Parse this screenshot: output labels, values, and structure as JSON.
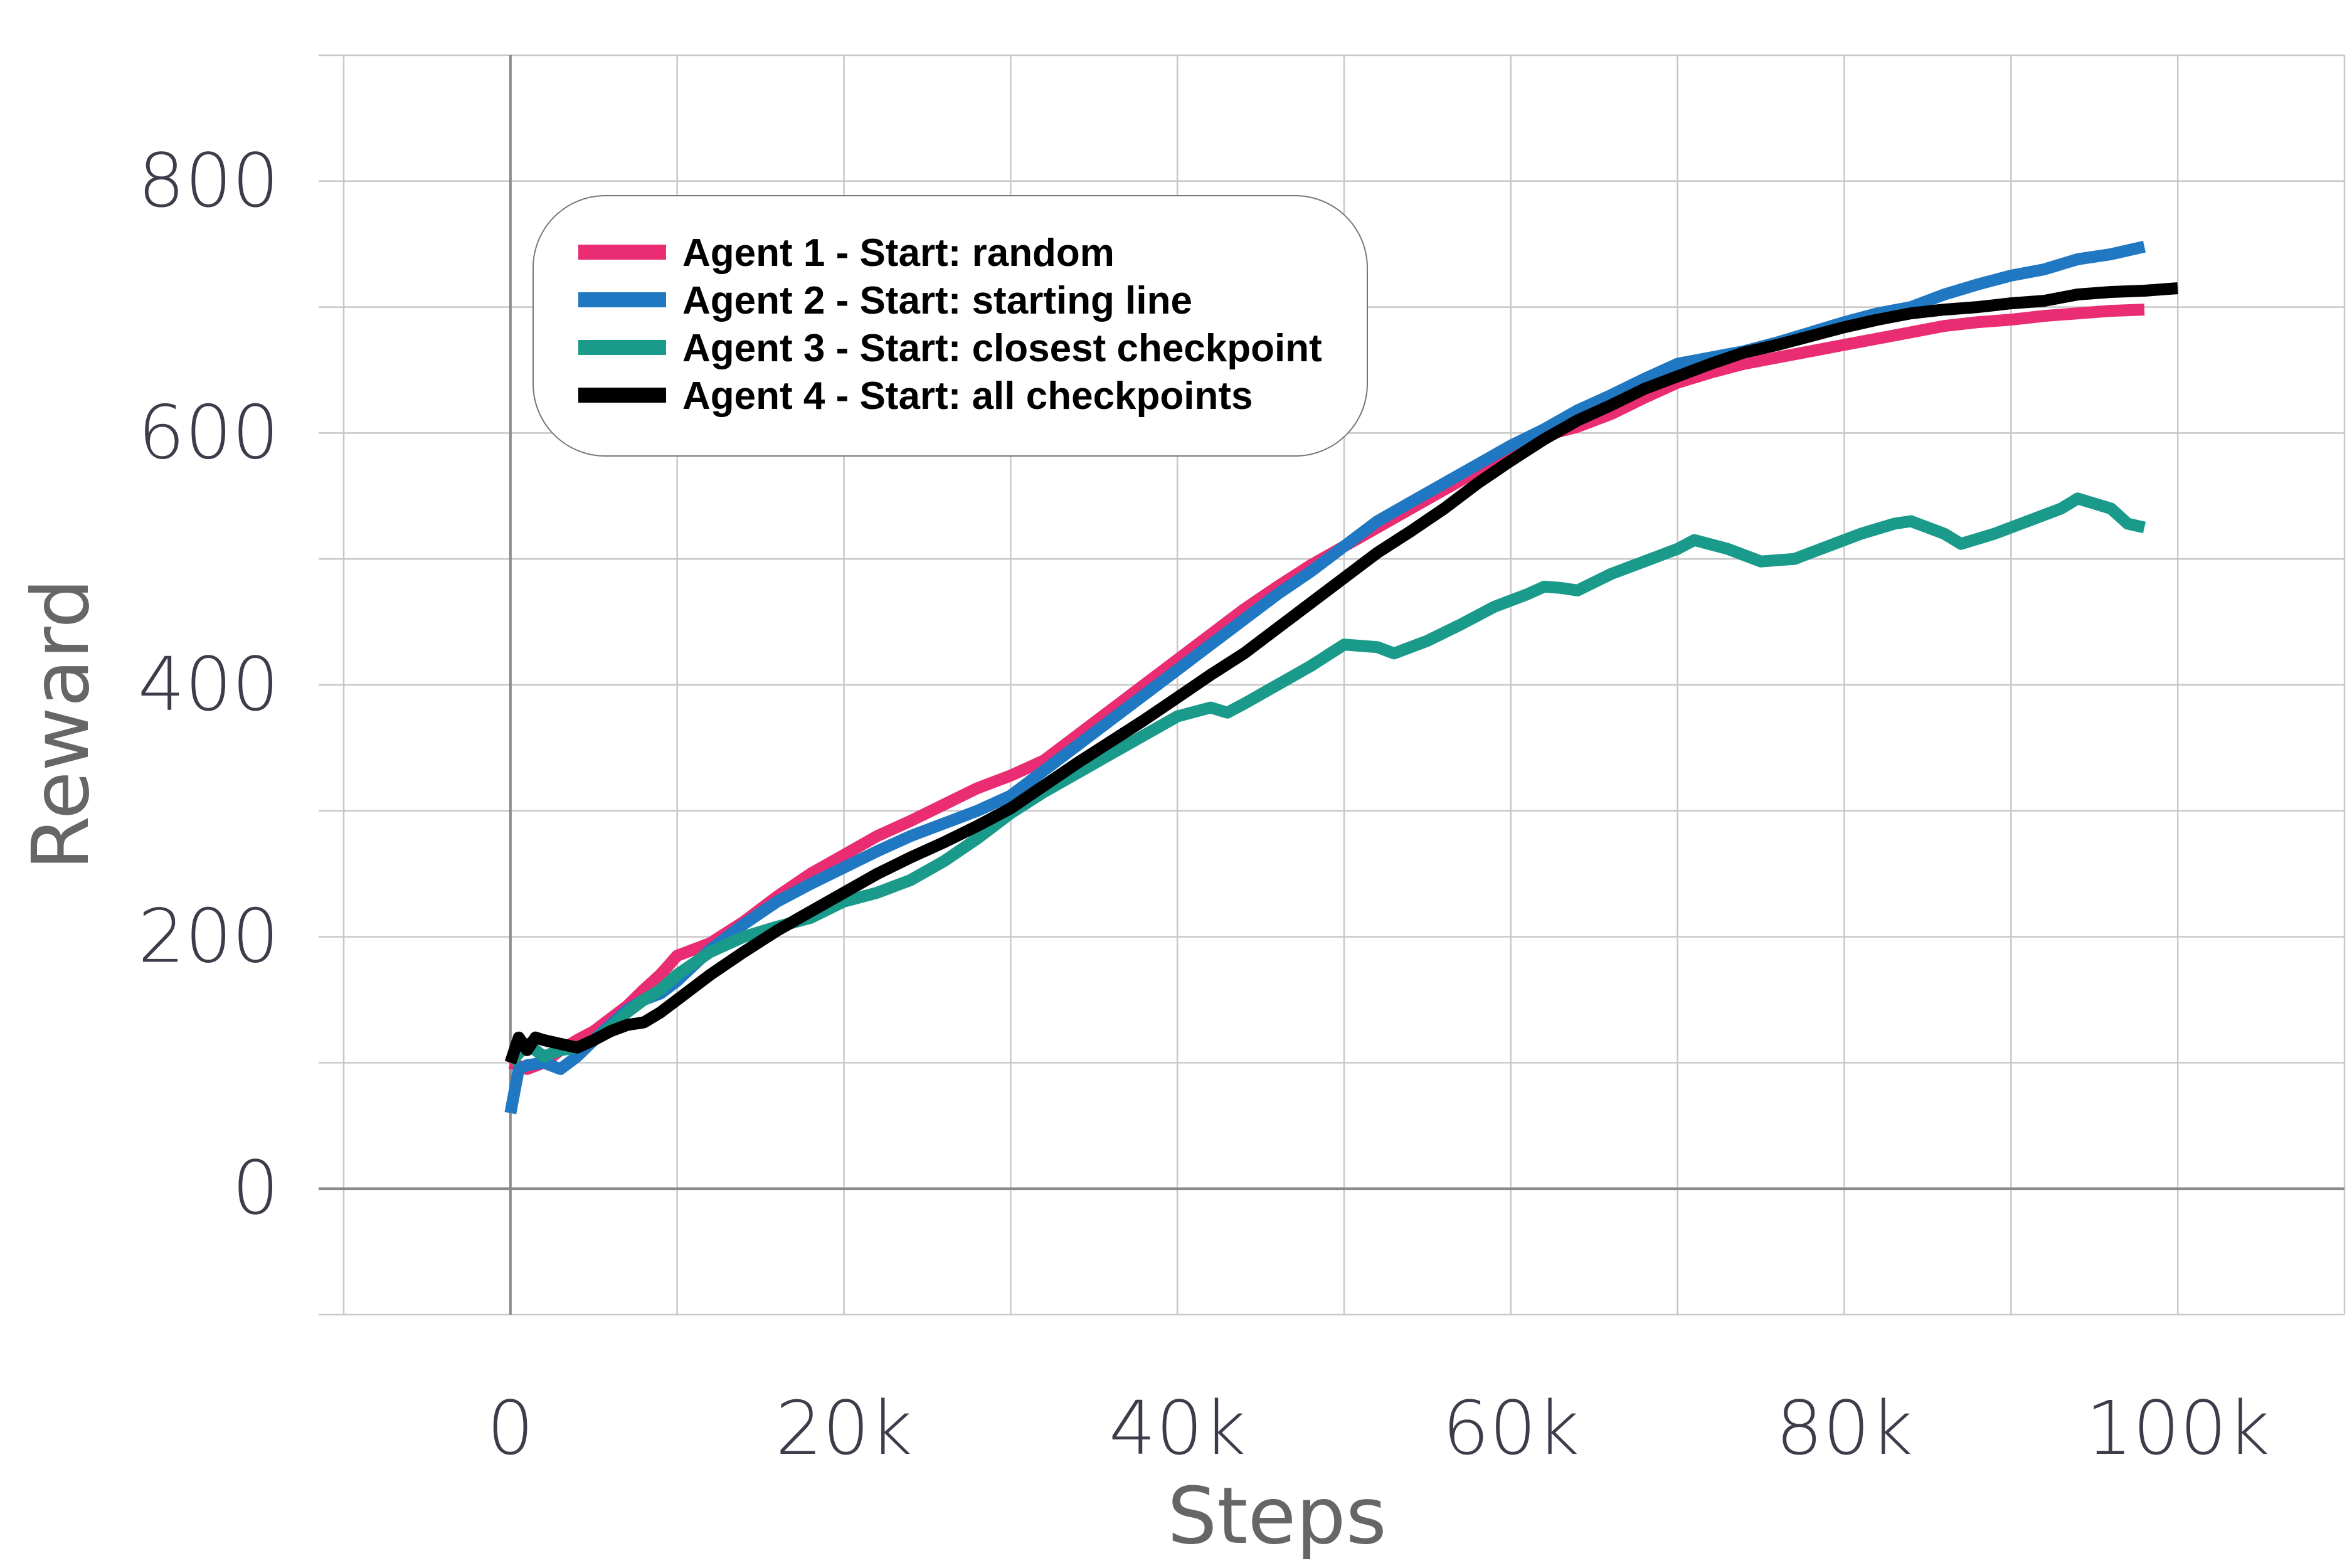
{
  "chart_data": {
    "type": "line",
    "title": "",
    "xlabel": "Steps",
    "ylabel": "Reward",
    "xlim": [
      -10000,
      110000
    ],
    "ylim": [
      -100,
      900
    ],
    "x_ticks": [
      0,
      20000,
      40000,
      60000,
      80000,
      100000
    ],
    "x_tick_labels": [
      "0",
      "20k",
      "40k",
      "60k",
      "80k",
      "100k"
    ],
    "y_ticks": [
      0,
      200,
      400,
      600,
      800
    ],
    "y_tick_labels": [
      "0",
      "200",
      "400",
      "600",
      "800"
    ],
    "grid": true,
    "legend_position": "top-left",
    "series": [
      {
        "name": "Agent 1 - Start: random",
        "color": "#ea2c72",
        "points": [
          [
            0,
            100
          ],
          [
            1000,
            95
          ],
          [
            2000,
            100
          ],
          [
            3000,
            110
          ],
          [
            4000,
            118
          ],
          [
            5000,
            125
          ],
          [
            6000,
            135
          ],
          [
            7000,
            145
          ],
          [
            8000,
            158
          ],
          [
            9000,
            170
          ],
          [
            10000,
            185
          ],
          [
            12000,
            195
          ],
          [
            14000,
            212
          ],
          [
            16000,
            232
          ],
          [
            18000,
            250
          ],
          [
            20000,
            265
          ],
          [
            22000,
            280
          ],
          [
            24000,
            292
          ],
          [
            26000,
            305
          ],
          [
            28000,
            318
          ],
          [
            30000,
            328
          ],
          [
            32000,
            340
          ],
          [
            34000,
            360
          ],
          [
            36000,
            380
          ],
          [
            38000,
            400
          ],
          [
            40000,
            420
          ],
          [
            42000,
            440
          ],
          [
            44000,
            460
          ],
          [
            46000,
            478
          ],
          [
            48000,
            495
          ],
          [
            50000,
            510
          ],
          [
            52000,
            525
          ],
          [
            54000,
            540
          ],
          [
            56000,
            555
          ],
          [
            58000,
            570
          ],
          [
            60000,
            585
          ],
          [
            62000,
            598
          ],
          [
            64000,
            605
          ],
          [
            66000,
            615
          ],
          [
            68000,
            628
          ],
          [
            70000,
            640
          ],
          [
            72000,
            648
          ],
          [
            74000,
            655
          ],
          [
            76000,
            660
          ],
          [
            78000,
            665
          ],
          [
            80000,
            670
          ],
          [
            82000,
            675
          ],
          [
            84000,
            680
          ],
          [
            86000,
            685
          ],
          [
            88000,
            688
          ],
          [
            90000,
            690
          ],
          [
            92000,
            693
          ],
          [
            94000,
            695
          ],
          [
            96000,
            697
          ],
          [
            98000,
            698
          ]
        ]
      },
      {
        "name": "Agent 2 - Start: starting line",
        "color": "#1f78c1",
        "points": [
          [
            0,
            60
          ],
          [
            500,
            95
          ],
          [
            1000,
            98
          ],
          [
            2000,
            100
          ],
          [
            3000,
            95
          ],
          [
            4000,
            105
          ],
          [
            5000,
            118
          ],
          [
            6000,
            130
          ],
          [
            7000,
            142
          ],
          [
            8000,
            150
          ],
          [
            9000,
            155
          ],
          [
            10000,
            165
          ],
          [
            12000,
            190
          ],
          [
            14000,
            210
          ],
          [
            16000,
            228
          ],
          [
            18000,
            242
          ],
          [
            20000,
            255
          ],
          [
            22000,
            268
          ],
          [
            24000,
            280
          ],
          [
            26000,
            290
          ],
          [
            28000,
            300
          ],
          [
            30000,
            312
          ],
          [
            32000,
            332
          ],
          [
            34000,
            352
          ],
          [
            36000,
            372
          ],
          [
            38000,
            392
          ],
          [
            40000,
            412
          ],
          [
            42000,
            432
          ],
          [
            44000,
            452
          ],
          [
            46000,
            472
          ],
          [
            48000,
            490
          ],
          [
            50000,
            510
          ],
          [
            52000,
            530
          ],
          [
            54000,
            545
          ],
          [
            56000,
            560
          ],
          [
            58000,
            575
          ],
          [
            60000,
            590
          ],
          [
            62000,
            603
          ],
          [
            64000,
            618
          ],
          [
            66000,
            630
          ],
          [
            68000,
            643
          ],
          [
            70000,
            655
          ],
          [
            72000,
            660
          ],
          [
            74000,
            665
          ],
          [
            76000,
            672
          ],
          [
            78000,
            680
          ],
          [
            80000,
            688
          ],
          [
            82000,
            695
          ],
          [
            84000,
            700
          ],
          [
            86000,
            710
          ],
          [
            88000,
            718
          ],
          [
            90000,
            725
          ],
          [
            92000,
            730
          ],
          [
            94000,
            738
          ],
          [
            96000,
            742
          ],
          [
            98000,
            748
          ]
        ]
      },
      {
        "name": "Agent 3 - Start: closest checkpoint",
        "color": "#1a9a8a",
        "points": [
          [
            0,
            100
          ],
          [
            1000,
            115
          ],
          [
            2000,
            105
          ],
          [
            3000,
            110
          ],
          [
            4000,
            112
          ],
          [
            5000,
            118
          ],
          [
            6000,
            128
          ],
          [
            7000,
            140
          ],
          [
            8000,
            150
          ],
          [
            9000,
            158
          ],
          [
            10000,
            170
          ],
          [
            12000,
            188
          ],
          [
            14000,
            200
          ],
          [
            16000,
            208
          ],
          [
            18000,
            215
          ],
          [
            20000,
            228
          ],
          [
            22000,
            235
          ],
          [
            24000,
            245
          ],
          [
            26000,
            260
          ],
          [
            28000,
            278
          ],
          [
            30000,
            298
          ],
          [
            32000,
            315
          ],
          [
            34000,
            330
          ],
          [
            36000,
            345
          ],
          [
            38000,
            360
          ],
          [
            40000,
            375
          ],
          [
            42000,
            382
          ],
          [
            43000,
            378
          ],
          [
            44000,
            385
          ],
          [
            46000,
            400
          ],
          [
            48000,
            415
          ],
          [
            50000,
            432
          ],
          [
            52000,
            430
          ],
          [
            53000,
            425
          ],
          [
            55000,
            435
          ],
          [
            57000,
            448
          ],
          [
            59000,
            462
          ],
          [
            61000,
            472
          ],
          [
            62000,
            478
          ],
          [
            63000,
            477
          ],
          [
            64000,
            475
          ],
          [
            66000,
            488
          ],
          [
            68000,
            498
          ],
          [
            70000,
            508
          ],
          [
            71000,
            515
          ],
          [
            73000,
            508
          ],
          [
            75000,
            498
          ],
          [
            77000,
            500
          ],
          [
            79000,
            510
          ],
          [
            81000,
            520
          ],
          [
            83000,
            528
          ],
          [
            84000,
            530
          ],
          [
            86000,
            520
          ],
          [
            87000,
            512
          ],
          [
            89000,
            520
          ],
          [
            91000,
            530
          ],
          [
            93000,
            540
          ],
          [
            94000,
            548
          ],
          [
            96000,
            540
          ],
          [
            97000,
            528
          ],
          [
            98000,
            525
          ]
        ]
      },
      {
        "name": "Agent 4 - Start: all checkpoints",
        "color": "#000000",
        "points": [
          [
            0,
            100
          ],
          [
            500,
            120
          ],
          [
            1000,
            110
          ],
          [
            1500,
            120
          ],
          [
            2000,
            118
          ],
          [
            3000,
            115
          ],
          [
            4000,
            112
          ],
          [
            5000,
            118
          ],
          [
            6000,
            125
          ],
          [
            7000,
            130
          ],
          [
            8000,
            132
          ],
          [
            9000,
            140
          ],
          [
            10000,
            150
          ],
          [
            12000,
            170
          ],
          [
            14000,
            188
          ],
          [
            16000,
            205
          ],
          [
            18000,
            220
          ],
          [
            20000,
            235
          ],
          [
            22000,
            250
          ],
          [
            24000,
            263
          ],
          [
            26000,
            275
          ],
          [
            28000,
            288
          ],
          [
            30000,
            302
          ],
          [
            32000,
            320
          ],
          [
            34000,
            338
          ],
          [
            36000,
            355
          ],
          [
            38000,
            372
          ],
          [
            40000,
            390
          ],
          [
            42000,
            408
          ],
          [
            44000,
            425
          ],
          [
            46000,
            445
          ],
          [
            48000,
            465
          ],
          [
            50000,
            485
          ],
          [
            52000,
            505
          ],
          [
            54000,
            522
          ],
          [
            56000,
            540
          ],
          [
            58000,
            560
          ],
          [
            60000,
            578
          ],
          [
            62000,
            595
          ],
          [
            64000,
            610
          ],
          [
            66000,
            622
          ],
          [
            68000,
            635
          ],
          [
            70000,
            645
          ],
          [
            72000,
            655
          ],
          [
            74000,
            664
          ],
          [
            76000,
            670
          ],
          [
            78000,
            677
          ],
          [
            80000,
            684
          ],
          [
            82000,
            690
          ],
          [
            84000,
            695
          ],
          [
            86000,
            698
          ],
          [
            88000,
            700
          ],
          [
            90000,
            703
          ],
          [
            92000,
            705
          ],
          [
            94000,
            710
          ],
          [
            96000,
            712
          ],
          [
            98000,
            713
          ],
          [
            100000,
            715
          ]
        ]
      }
    ]
  }
}
